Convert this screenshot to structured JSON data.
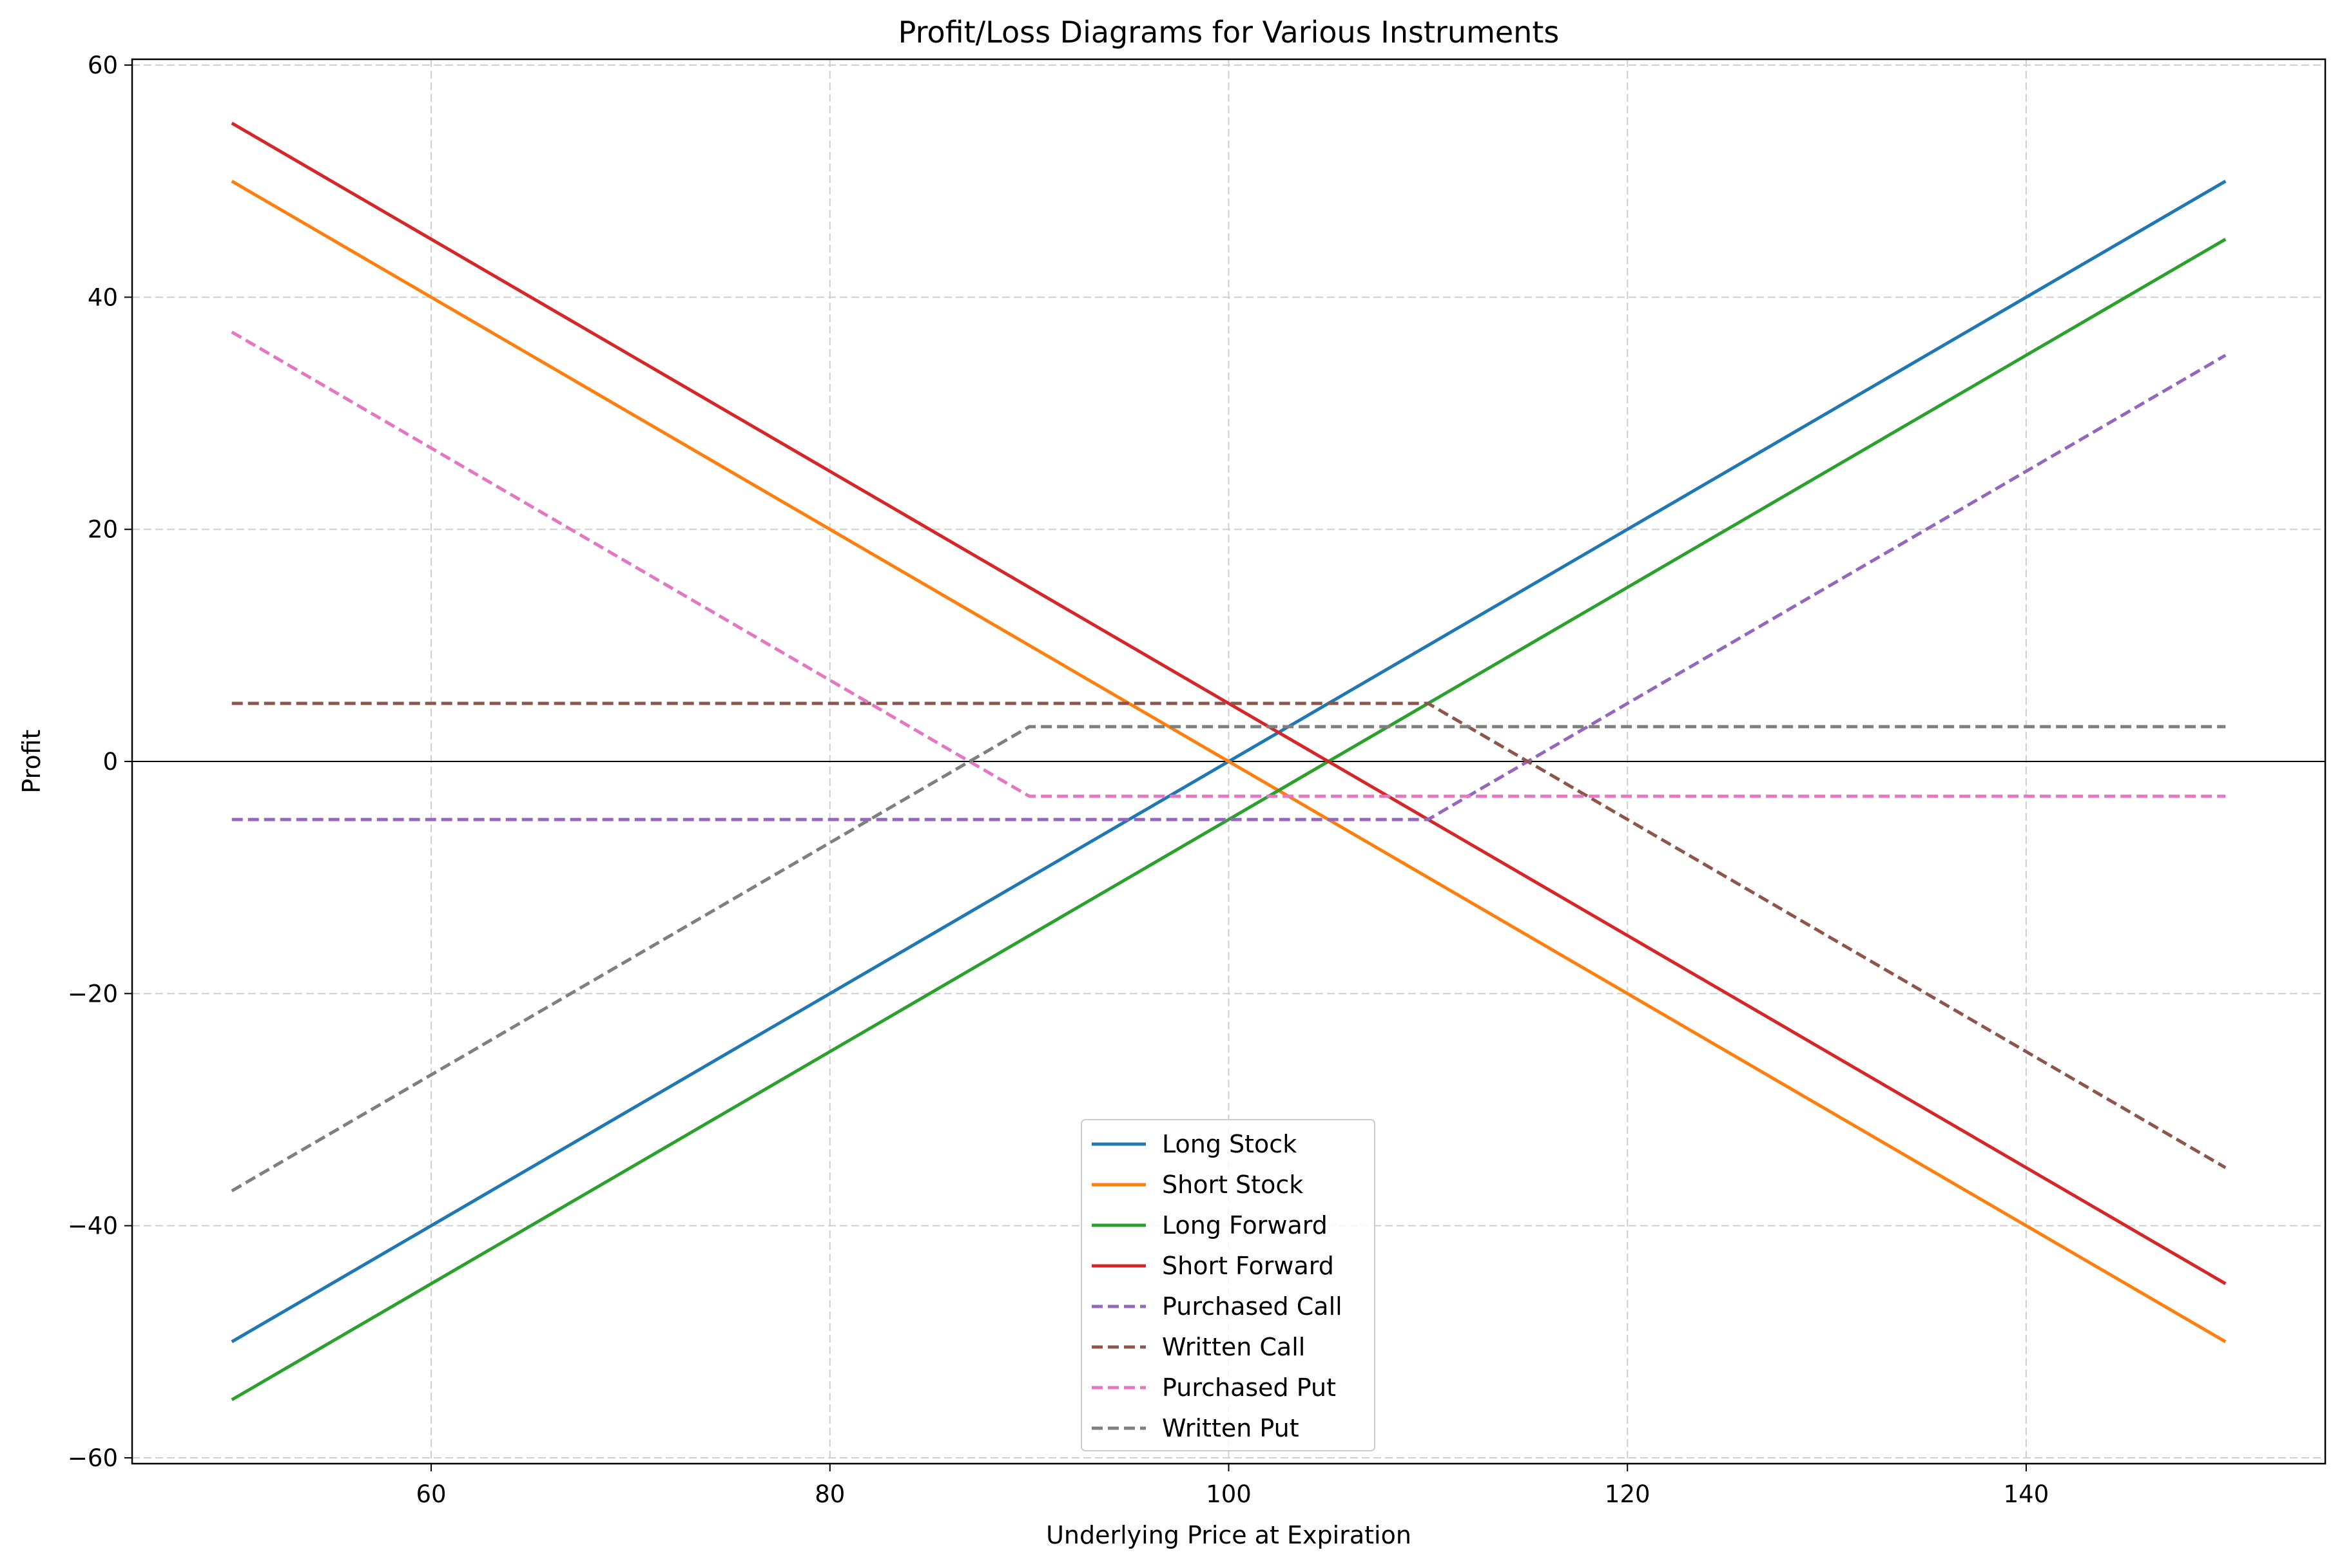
{
  "chart_data": {
    "type": "line",
    "title": "Profit/Loss Diagrams for Various Instruments",
    "xlabel": "Underlying Price at Expiration",
    "ylabel": "Profit",
    "xlim": [
      45,
      155
    ],
    "ylim": [
      -60.5,
      60.5
    ],
    "xticks": [
      60,
      80,
      100,
      120,
      140
    ],
    "yticks": [
      -60,
      -40,
      -20,
      0,
      20,
      40,
      60
    ],
    "xtick_labels": [
      "60",
      "80",
      "100",
      "120",
      "140"
    ],
    "ytick_labels": [
      "−60",
      "−40",
      "−20",
      "0",
      "20",
      "40",
      "60"
    ],
    "grid": true,
    "zero_line": true,
    "legend_position": "lower center",
    "series": [
      {
        "name": "Long Stock",
        "color": "#1f77b4",
        "style": "solid",
        "x": [
          50,
          150
        ],
        "y": [
          -50,
          50
        ]
      },
      {
        "name": "Short Stock",
        "color": "#ff7f0e",
        "style": "solid",
        "x": [
          50,
          150
        ],
        "y": [
          50,
          -50
        ]
      },
      {
        "name": "Long Forward",
        "color": "#2ca02c",
        "style": "solid",
        "x": [
          50,
          150
        ],
        "y": [
          -55,
          45
        ]
      },
      {
        "name": "Short Forward",
        "color": "#d62728",
        "style": "solid",
        "x": [
          50,
          150
        ],
        "y": [
          55,
          -45
        ]
      },
      {
        "name": "Purchased Call",
        "color": "#9467bd",
        "style": "dashed",
        "x": [
          50,
          110,
          150
        ],
        "y": [
          -5,
          -5,
          35
        ]
      },
      {
        "name": "Written Call",
        "color": "#8c564b",
        "style": "dashed",
        "x": [
          50,
          110,
          150
        ],
        "y": [
          5,
          5,
          -35
        ]
      },
      {
        "name": "Purchased Put",
        "color": "#e377c2",
        "style": "dashed",
        "x": [
          50,
          90,
          150
        ],
        "y": [
          37,
          -3,
          -3
        ]
      },
      {
        "name": "Written Put",
        "color": "#7f7f7f",
        "style": "dashed",
        "x": [
          50,
          90,
          150
        ],
        "y": [
          -37,
          3,
          3
        ]
      }
    ]
  }
}
